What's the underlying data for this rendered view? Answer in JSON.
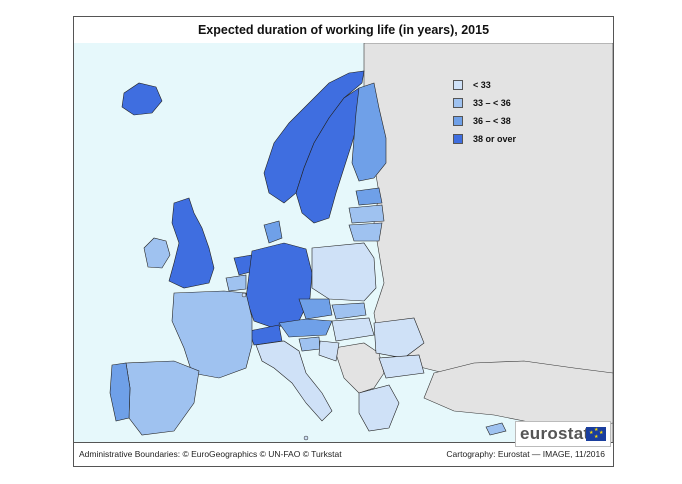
{
  "map": {
    "title": "Expected duration of working life (in years), 2015",
    "legend": [
      {
        "label": "< 33",
        "color": "#cfe1f7"
      },
      {
        "label": "33 – < 36",
        "color": "#9fc2f0"
      },
      {
        "label": "36 – < 38",
        "color": "#6fa0e8"
      },
      {
        "label": "38 or over",
        "color": "#3f6ee0"
      }
    ],
    "sea_color": "#e6f8fb",
    "non_eu_color": "#e3e3e3",
    "footer_left": "Administrative Boundaries: © EuroGeographics © UN-FAO © Turkstat",
    "footer_right": "Cartography: Eurostat — IMAGE, 11/2016",
    "logo_text": "eurostat"
  }
}
